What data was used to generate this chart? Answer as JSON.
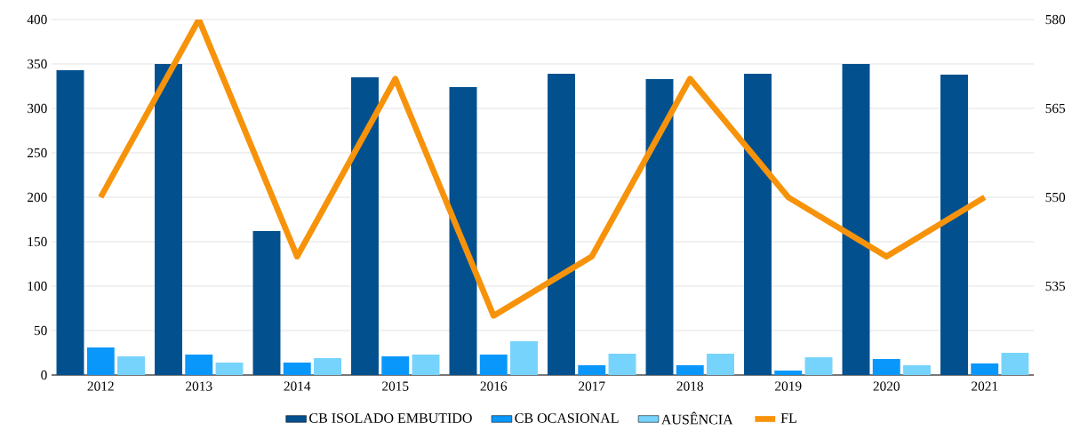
{
  "chart_data": {
    "type": "bar",
    "categories": [
      "2012",
      "2013",
      "2014",
      "2015",
      "2016",
      "2017",
      "2018",
      "2019",
      "2020",
      "2021"
    ],
    "series": [
      {
        "name": "CB ISOLADO EMBUTIDO",
        "color": "#03508f",
        "values": [
          343,
          350,
          162,
          335,
          324,
          339,
          333,
          339,
          350,
          338
        ]
      },
      {
        "name": "CB OCASIONAL",
        "color": "#0a97fb",
        "values": [
          31,
          23,
          14,
          21,
          23,
          11,
          11,
          5,
          18,
          13
        ]
      },
      {
        "name": "AUSÊNCIA",
        "color": "#76d3fb",
        "values": [
          21,
          14,
          19,
          23,
          38,
          24,
          24,
          20,
          11,
          25
        ]
      },
      {
        "name": "FL",
        "type": "line",
        "axis": "y2",
        "color": "#f7930a",
        "values": [
          550,
          580,
          540,
          570,
          530,
          540,
          570,
          550,
          540,
          550
        ]
      }
    ],
    "ylim": [
      0,
      400
    ],
    "yticks": [
      0,
      50,
      100,
      150,
      200,
      250,
      300,
      350,
      400
    ],
    "y2lim": [
      520,
      580
    ],
    "y2ticks": [
      535,
      550,
      565,
      580
    ],
    "grid": "y",
    "legend": "bottom",
    "marker": "none",
    "line_style": "solid"
  }
}
